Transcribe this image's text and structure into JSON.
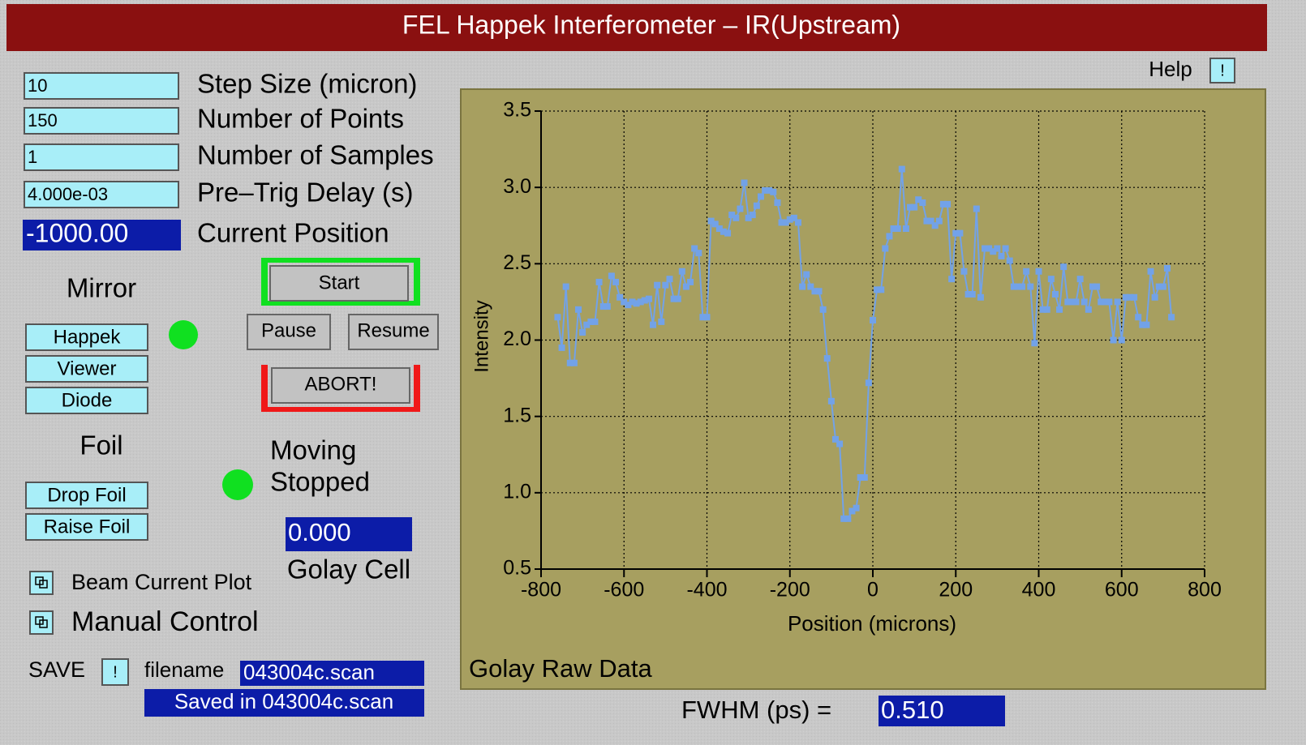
{
  "header": {
    "title": "FEL Happek Interferometer – IR(Upstream)"
  },
  "help": {
    "label": "Help",
    "button": "!"
  },
  "scan_settings": [
    {
      "label": "Step Size (micron)",
      "value": "10"
    },
    {
      "label": "Number of Points",
      "value": "150"
    },
    {
      "label": "Number of Samples",
      "value": "1"
    },
    {
      "label": "Pre–Trig Delay (s)",
      "value": "4.000e-03"
    }
  ],
  "current_position": {
    "label": "Current Position",
    "value": "-1000.00"
  },
  "mirror": {
    "label": "Mirror",
    "buttons": [
      "Happek",
      "Viewer",
      "Diode"
    ]
  },
  "controls": {
    "start": "Start",
    "pause": "Pause",
    "resume": "Resume",
    "abort": "ABORT!"
  },
  "foil": {
    "label": "Foil",
    "buttons": [
      "Drop Foil",
      "Raise Foil"
    ]
  },
  "status": {
    "moving": "Moving",
    "stopped": "Stopped"
  },
  "golay": {
    "value": "0.000",
    "label": "Golay Cell"
  },
  "options": [
    "Beam Current Plot",
    "Manual Control"
  ],
  "save": {
    "label": "SAVE",
    "button": "!",
    "filename_label": "filename",
    "filename": "043004c.scan",
    "message": "Saved in 043004c.scan"
  },
  "chart_data": {
    "type": "line",
    "title": "Golay Raw Data",
    "x_label": "Position (microns)",
    "y_label": "Intensity",
    "color": "#72a2e8",
    "grid": true,
    "xlim": [
      -800,
      800
    ],
    "xticks": [
      -800,
      -600,
      -400,
      -200,
      0,
      200,
      400,
      600,
      800
    ],
    "ylim": [
      0.5,
      3.5
    ],
    "yticks": [
      0.5,
      {
        "value": 1,
        "label": "1.0"
      },
      1.5,
      {
        "value": 2,
        "label": "2.0"
      },
      2.5,
      {
        "value": 3,
        "label": "3.0"
      },
      3.5
    ],
    "x": [
      -760,
      -750,
      -740,
      -730,
      -720,
      -710,
      -700,
      -690,
      -680,
      -670,
      -660,
      -650,
      -640,
      -630,
      -620,
      -610,
      -600,
      -590,
      -580,
      -570,
      -560,
      -550,
      -540,
      -530,
      -520,
      -510,
      -500,
      -490,
      -480,
      -470,
      -460,
      -450,
      -440,
      -430,
      -420,
      -410,
      -400,
      -390,
      -380,
      -370,
      -360,
      -350,
      -340,
      -330,
      -320,
      -310,
      -300,
      -290,
      -280,
      -270,
      -260,
      -250,
      -240,
      -230,
      -220,
      -210,
      -200,
      -190,
      -180,
      -170,
      -160,
      -150,
      -140,
      -130,
      -120,
      -110,
      -100,
      -90,
      -80,
      -70,
      -60,
      -50,
      -40,
      -30,
      -20,
      -10,
      0,
      10,
      20,
      30,
      40,
      50,
      60,
      70,
      80,
      90,
      100,
      110,
      120,
      130,
      140,
      150,
      160,
      170,
      180,
      190,
      200,
      210,
      220,
      230,
      240,
      250,
      260,
      270,
      280,
      290,
      300,
      310,
      320,
      330,
      340,
      350,
      360,
      370,
      380,
      390,
      400,
      410,
      420,
      430,
      440,
      450,
      460,
      470,
      480,
      490,
      500,
      510,
      520,
      530,
      540,
      550,
      560,
      570,
      580,
      590,
      600,
      610,
      620,
      630,
      640,
      650,
      660,
      670,
      680,
      690,
      700,
      710,
      720
    ],
    "values": [
      2.15,
      1.95,
      2.35,
      1.85,
      1.85,
      2.2,
      2.05,
      2.1,
      2.12,
      2.12,
      2.38,
      2.22,
      2.22,
      2.42,
      2.38,
      2.28,
      2.25,
      2.23,
      2.25,
      2.24,
      2.25,
      2.26,
      2.27,
      2.1,
      2.36,
      2.12,
      2.36,
      2.4,
      2.27,
      2.27,
      2.45,
      2.35,
      2.38,
      2.6,
      2.57,
      2.15,
      2.15,
      2.78,
      2.76,
      2.73,
      2.71,
      2.7,
      2.82,
      2.8,
      2.86,
      3.03,
      2.8,
      2.82,
      2.88,
      2.94,
      2.98,
      2.98,
      2.97,
      2.9,
      2.77,
      2.77,
      2.79,
      2.8,
      2.77,
      2.35,
      2.43,
      2.35,
      2.32,
      2.32,
      2.2,
      1.88,
      1.6,
      1.35,
      1.32,
      0.83,
      0.83,
      0.88,
      0.9,
      1.1,
      1.1,
      1.72,
      2.13,
      2.33,
      2.33,
      2.6,
      2.68,
      2.73,
      2.73,
      3.12,
      2.73,
      2.87,
      2.87,
      2.92,
      2.9,
      2.78,
      2.78,
      2.75,
      2.78,
      2.89,
      2.89,
      2.4,
      2.7,
      2.7,
      2.45,
      2.3,
      2.3,
      2.86,
      2.28,
      2.6,
      2.6,
      2.58,
      2.6,
      2.55,
      2.6,
      2.52,
      2.35,
      2.35,
      2.35,
      2.45,
      2.35,
      1.98,
      2.45,
      2.2,
      2.2,
      2.4,
      2.3,
      2.2,
      2.48,
      2.25,
      2.25,
      2.25,
      2.4,
      2.25,
      2.2,
      2.35,
      2.35,
      2.25,
      2.25,
      2.25,
      2.0,
      2.25,
      2.0,
      2.28,
      2.28,
      2.28,
      2.15,
      2.1,
      2.1,
      2.45,
      2.28,
      2.35,
      2.35,
      2.47,
      2.15
    ]
  },
  "fwhm": {
    "label": "FWHM (ps) =",
    "value": "0.510"
  }
}
